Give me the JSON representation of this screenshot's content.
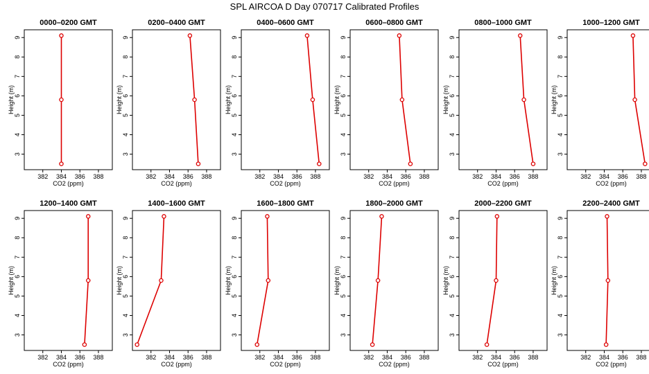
{
  "figure_title": "SPL AIRCOA D  Day 070717  Calibrated Profiles",
  "colors": {
    "series": "#dd0000",
    "axes": "#000000",
    "background": "#ffffff"
  },
  "chart_data": [
    {
      "type": "line",
      "title": "0000–0200 GMT",
      "xlabel": "CO2 (ppm)",
      "ylabel": "Height (m)",
      "xlim": [
        380,
        389.5
      ],
      "ylim": [
        2.2,
        9.4
      ],
      "xticks": [
        382,
        384,
        386,
        388
      ],
      "yticks": [
        3,
        4,
        5,
        6,
        7,
        8,
        9
      ],
      "series": [
        {
          "x": [
            384.0,
            384.0,
            384.0
          ],
          "y": [
            2.5,
            5.8,
            9.1
          ]
        }
      ]
    },
    {
      "type": "line",
      "title": "0200–0400 GMT",
      "xlabel": "CO2 (ppm)",
      "ylabel": "Height (m)",
      "xlim": [
        380,
        389.5
      ],
      "ylim": [
        2.2,
        9.4
      ],
      "xticks": [
        382,
        384,
        386,
        388
      ],
      "yticks": [
        3,
        4,
        5,
        6,
        7,
        8,
        9
      ],
      "series": [
        {
          "x": [
            387.1,
            386.7,
            386.2
          ],
          "y": [
            2.5,
            5.8,
            9.1
          ]
        }
      ]
    },
    {
      "type": "line",
      "title": "0400–0600 GMT",
      "xlabel": "CO2 (ppm)",
      "ylabel": "Height (m)",
      "xlim": [
        380,
        389.5
      ],
      "ylim": [
        2.2,
        9.4
      ],
      "xticks": [
        382,
        384,
        386,
        388
      ],
      "yticks": [
        3,
        4,
        5,
        6,
        7,
        8,
        9
      ],
      "series": [
        {
          "x": [
            388.4,
            387.7,
            387.1
          ],
          "y": [
            2.5,
            5.8,
            9.1
          ]
        }
      ]
    },
    {
      "type": "line",
      "title": "0600–0800 GMT",
      "xlabel": "CO2 (ppm)",
      "ylabel": "Height (m)",
      "xlim": [
        380,
        389.5
      ],
      "ylim": [
        2.2,
        9.4
      ],
      "xticks": [
        382,
        384,
        386,
        388
      ],
      "yticks": [
        3,
        4,
        5,
        6,
        7,
        8,
        9
      ],
      "series": [
        {
          "x": [
            386.5,
            385.6,
            385.3
          ],
          "y": [
            2.5,
            5.8,
            9.1
          ]
        }
      ]
    },
    {
      "type": "line",
      "title": "0800–1000 GMT",
      "xlabel": "CO2 (ppm)",
      "ylabel": "Height (m)",
      "xlim": [
        380,
        389.5
      ],
      "ylim": [
        2.2,
        9.4
      ],
      "xticks": [
        382,
        384,
        386,
        388
      ],
      "yticks": [
        3,
        4,
        5,
        6,
        7,
        8,
        9
      ],
      "series": [
        {
          "x": [
            388.0,
            387.0,
            386.6
          ],
          "y": [
            2.5,
            5.8,
            9.1
          ]
        }
      ]
    },
    {
      "type": "line",
      "title": "1000–1200 GMT",
      "xlabel": "CO2 (ppm)",
      "ylabel": "Height (m)",
      "xlim": [
        380,
        389.5
      ],
      "ylim": [
        2.2,
        9.4
      ],
      "xticks": [
        382,
        384,
        386,
        388
      ],
      "yticks": [
        3,
        4,
        5,
        6,
        7,
        8,
        9
      ],
      "series": [
        {
          "x": [
            388.4,
            387.3,
            387.1
          ],
          "y": [
            2.5,
            5.8,
            9.1
          ]
        }
      ]
    },
    {
      "type": "line",
      "title": "1200–1400 GMT",
      "xlabel": "CO2 (ppm)",
      "ylabel": "Height (m)",
      "xlim": [
        380,
        389.5
      ],
      "ylim": [
        2.2,
        9.4
      ],
      "xticks": [
        382,
        384,
        386,
        388
      ],
      "yticks": [
        3,
        4,
        5,
        6,
        7,
        8,
        9
      ],
      "series": [
        {
          "x": [
            386.5,
            386.9,
            386.9
          ],
          "y": [
            2.5,
            5.8,
            9.1
          ]
        }
      ]
    },
    {
      "type": "line",
      "title": "1400–1600 GMT",
      "xlabel": "CO2 (ppm)",
      "ylabel": "Height (m)",
      "xlim": [
        380,
        389.5
      ],
      "ylim": [
        2.2,
        9.4
      ],
      "xticks": [
        382,
        384,
        386,
        388
      ],
      "yticks": [
        3,
        4,
        5,
        6,
        7,
        8,
        9
      ],
      "series": [
        {
          "x": [
            380.5,
            383.1,
            383.4
          ],
          "y": [
            2.5,
            5.8,
            9.1
          ]
        }
      ]
    },
    {
      "type": "line",
      "title": "1600–1800 GMT",
      "xlabel": "CO2 (ppm)",
      "ylabel": "Height (m)",
      "xlim": [
        380,
        389.5
      ],
      "ylim": [
        2.2,
        9.4
      ],
      "xticks": [
        382,
        384,
        386,
        388
      ],
      "yticks": [
        3,
        4,
        5,
        6,
        7,
        8,
        9
      ],
      "series": [
        {
          "x": [
            381.7,
            382.9,
            382.8
          ],
          "y": [
            2.5,
            5.8,
            9.1
          ]
        }
      ]
    },
    {
      "type": "line",
      "title": "1800–2000 GMT",
      "xlabel": "CO2 (ppm)",
      "ylabel": "Height (m)",
      "xlim": [
        380,
        389.5
      ],
      "ylim": [
        2.2,
        9.4
      ],
      "xticks": [
        382,
        384,
        386,
        388
      ],
      "yticks": [
        3,
        4,
        5,
        6,
        7,
        8,
        9
      ],
      "series": [
        {
          "x": [
            382.4,
            383.0,
            383.4
          ],
          "y": [
            2.5,
            5.8,
            9.1
          ]
        }
      ]
    },
    {
      "type": "line",
      "title": "2000–2200 GMT",
      "xlabel": "CO2 (ppm)",
      "ylabel": "Height (m)",
      "xlim": [
        380,
        389.5
      ],
      "ylim": [
        2.2,
        9.4
      ],
      "xticks": [
        382,
        384,
        386,
        388
      ],
      "yticks": [
        3,
        4,
        5,
        6,
        7,
        8,
        9
      ],
      "series": [
        {
          "x": [
            383.0,
            384.0,
            384.1
          ],
          "y": [
            2.5,
            5.8,
            9.1
          ]
        }
      ]
    },
    {
      "type": "line",
      "title": "2200–2400 GMT",
      "xlabel": "CO2 (ppm)",
      "ylabel": "Height (m)",
      "xlim": [
        380,
        389.5
      ],
      "ylim": [
        2.2,
        9.4
      ],
      "xticks": [
        382,
        384,
        386,
        388
      ],
      "yticks": [
        3,
        4,
        5,
        6,
        7,
        8,
        9
      ],
      "series": [
        {
          "x": [
            384.2,
            384.4,
            384.3
          ],
          "y": [
            2.5,
            5.8,
            9.1
          ]
        }
      ]
    }
  ]
}
